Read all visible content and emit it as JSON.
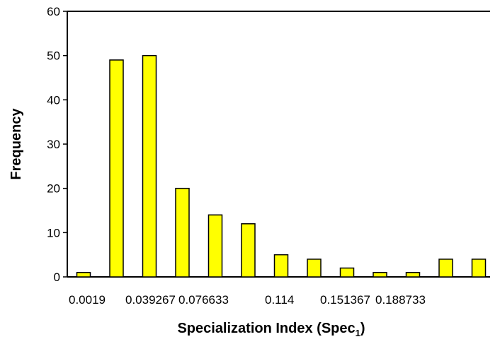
{
  "chart_data": {
    "type": "bar",
    "title": "",
    "xlabel": "Specialization Index (Spec",
    "xlabel_subscript": "1",
    "xlabel_suffix": ")",
    "ylabel": "Frequency",
    "ylim": [
      0,
      60
    ],
    "yticks": [
      "0",
      "10",
      "20",
      "30",
      "40",
      "50",
      "60"
    ],
    "x_tick_labels": [
      "0.0019",
      "0.039267",
      "0.076633",
      "0.114",
      "0.151367",
      "0.188733"
    ],
    "values": [
      1,
      49,
      50,
      20,
      14,
      12,
      5,
      4,
      2,
      1,
      1,
      4,
      4
    ],
    "bar_color": "#ffff00",
    "bar_border": "#000000",
    "grid": false,
    "legend": "none"
  }
}
